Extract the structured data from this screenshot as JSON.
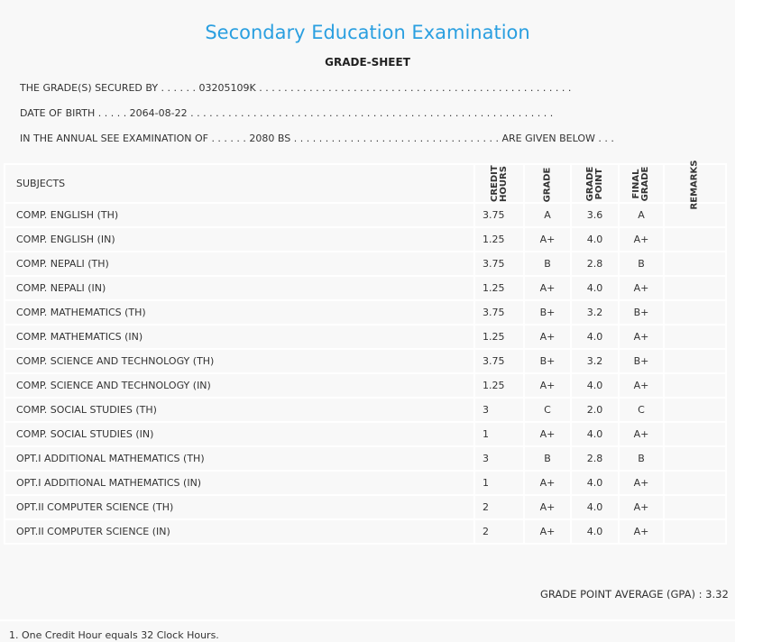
{
  "title": "Secondary Education Examination",
  "subtitle": "GRADE-SHEET",
  "secured_by": "THE GRADE(S) SECURED BY . . . . . . 03205109K . . . . . . . . . . . . . . . . . . . . . . . . . . . . . . . . . . . . . . . . . . . . . . . . . .",
  "dob": "DATE OF BIRTH . . . . . 2064-08-22 . . . . . . . . . . . . . . . . . . . . . . . . . . . . . . . . . . . . . . . . . . . . . . . . . . . . . . . . . .",
  "exam": "IN THE ANNUAL SEE EXAMINATION OF . . . . . . 2080 BS . . . . . . . . . . . . . . . . . . . . . . . . . . . . . . . . . ARE GIVEN BELOW . . .",
  "headers": {
    "subjects": "SUBJECTS",
    "credit": "CREDIT HOURS",
    "grade": "GRADE",
    "point": "GRADE POINT",
    "final": "FINAL GRADE",
    "remarks": "REMARKS"
  },
  "rows": [
    [
      "COMP. ENGLISH (TH)",
      "3.75",
      "A",
      "3.6",
      "A"
    ],
    [
      "COMP. ENGLISH (IN)",
      "1.25",
      "A+",
      "4.0",
      "A+"
    ],
    [
      "COMP. NEPALI (TH)",
      "3.75",
      "B",
      "2.8",
      "B"
    ],
    [
      "COMP. NEPALI (IN)",
      "1.25",
      "A+",
      "4.0",
      "A+"
    ],
    [
      "COMP. MATHEMATICS (TH)",
      "3.75",
      "B+",
      "3.2",
      "B+"
    ],
    [
      "COMP. MATHEMATICS (IN)",
      "1.25",
      "A+",
      "4.0",
      "A+"
    ],
    [
      "COMP. SCIENCE AND TECHNOLOGY (TH)",
      "3.75",
      "B+",
      "3.2",
      "B+"
    ],
    [
      "COMP. SCIENCE AND TECHNOLOGY (IN)",
      "1.25",
      "A+",
      "4.0",
      "A+"
    ],
    [
      "COMP. SOCIAL STUDIES (TH)",
      "3",
      "C",
      "2.0",
      "C"
    ],
    [
      "COMP. SOCIAL STUDIES (IN)",
      "1",
      "A+",
      "4.0",
      "A+"
    ],
    [
      "OPT.I ADDITIONAL MATHEMATICS (TH)",
      "3",
      "B",
      "2.8",
      "B"
    ],
    [
      "OPT.I ADDITIONAL MATHEMATICS (IN)",
      "1",
      "A+",
      "4.0",
      "A+"
    ],
    [
      "OPT.II COMPUTER SCIENCE (TH)",
      "2",
      "A+",
      "4.0",
      "A+"
    ],
    [
      "OPT.II COMPUTER SCIENCE (IN)",
      "2",
      "A+",
      "4.0",
      "A+"
    ]
  ],
  "gpa": "GRADE POINT AVERAGE (GPA) : 3.32",
  "footnote": "1. One Credit Hour equals 32 Clock Hours."
}
